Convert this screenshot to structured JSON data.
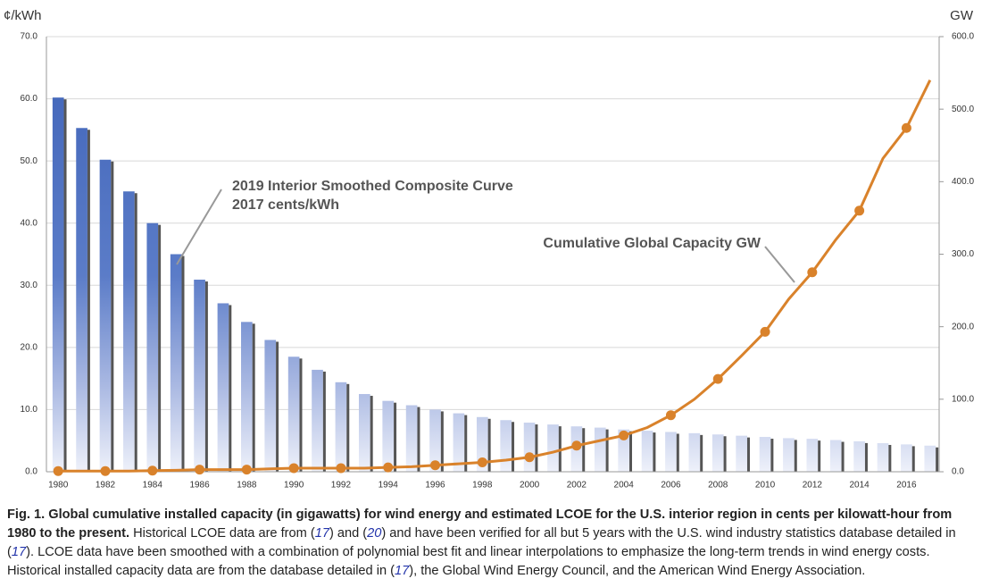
{
  "chart_data": {
    "type": "bar-line",
    "y_axis_label": "¢/kWh",
    "y2_axis_label": "GW",
    "categories": [
      "1980",
      null,
      "1982",
      null,
      "1984",
      null,
      "1986",
      null,
      "1988",
      null,
      "1990",
      null,
      "1992",
      null,
      "1994",
      null,
      "1996",
      null,
      "1998",
      null,
      "2000",
      null,
      "2002",
      null,
      "2004",
      null,
      "2006",
      null,
      "2008",
      null,
      "2010",
      null,
      "2012",
      null,
      "2014",
      null,
      "2016",
      null
    ],
    "series": [
      {
        "name": "2019 Interior Smoothed Composite Curve",
        "type": "bar",
        "color": "#4a6fc0",
        "values": [
          60.2,
          55.3,
          50.2,
          45.1,
          40.0,
          35.0,
          30.9,
          27.1,
          24.1,
          21.2,
          18.5,
          16.4,
          14.4,
          12.5,
          11.4,
          10.7,
          10.0,
          9.4,
          8.8,
          8.3,
          7.9,
          7.6,
          7.3,
          7.1,
          6.8,
          6.6,
          6.4,
          6.2,
          6.0,
          5.8,
          5.6,
          5.4,
          5.3,
          5.1,
          4.9,
          4.6,
          4.4,
          4.2
        ]
      },
      {
        "name": "Cumulative Global Capacity GW",
        "type": "line",
        "axis": "y2",
        "color": "#d9822b",
        "values": [
          1,
          1,
          1,
          1,
          1.5,
          2,
          3,
          3,
          3,
          4,
          5,
          5,
          5,
          5,
          6,
          7,
          9,
          11,
          13,
          16,
          20,
          27,
          36,
          43,
          50,
          61,
          78,
          100,
          128,
          160,
          193,
          238,
          275,
          320,
          360,
          432,
          474,
          540
        ]
      }
    ],
    "annotations": [
      "2019 Interior Smoothed Composite Curve",
      "2017 cents/kWh",
      "Cumulative Global Capacity GW"
    ],
    "ylim": [
      0,
      70
    ],
    "yticks": [
      {
        "value": 0,
        "label": "0.0"
      },
      {
        "value": 10,
        "label": "10.0"
      },
      {
        "value": 20,
        "label": "20.0"
      },
      {
        "value": 30,
        "label": "30.0"
      },
      {
        "value": 40,
        "label": "40.0"
      },
      {
        "value": 50,
        "label": "50.0"
      },
      {
        "value": 60,
        "label": "60.0"
      },
      {
        "value": 70,
        "label": "70.0"
      }
    ],
    "y2lim": [
      0,
      600
    ],
    "y2ticks": [
      {
        "value": 0,
        "label": "0.0"
      },
      {
        "value": 100,
        "label": "100.0"
      },
      {
        "value": 200,
        "label": "200.0"
      },
      {
        "value": 300,
        "label": "300.0"
      },
      {
        "value": 400,
        "label": "400.0"
      },
      {
        "value": 500,
        "label": "500.0"
      },
      {
        "value": 600,
        "label": "600.0"
      }
    ],
    "grid": true
  },
  "caption": {
    "runs": [
      "Fig. 1. Global cumulative installed capacity (in gigawatts) for wind energy and estimated LCOE for the U.S. interior region in cents per kilowatt-hour from 1980 to the present.",
      " Historical LCOE data are from (",
      "17",
      ") and (",
      "20",
      ") and have been verified for all but 5 years with the U.S. wind industry statistics database detailed in (",
      "17",
      "). LCOE data have been smoothed with a combination of polynomial best fit and linear interpolations to emphasize the long-term trends in wind energy costs. Historical installed capacity data are from the database detailed in (",
      "17",
      "), the Global Wind Energy Council, and the American Wind Energy Association."
    ]
  }
}
